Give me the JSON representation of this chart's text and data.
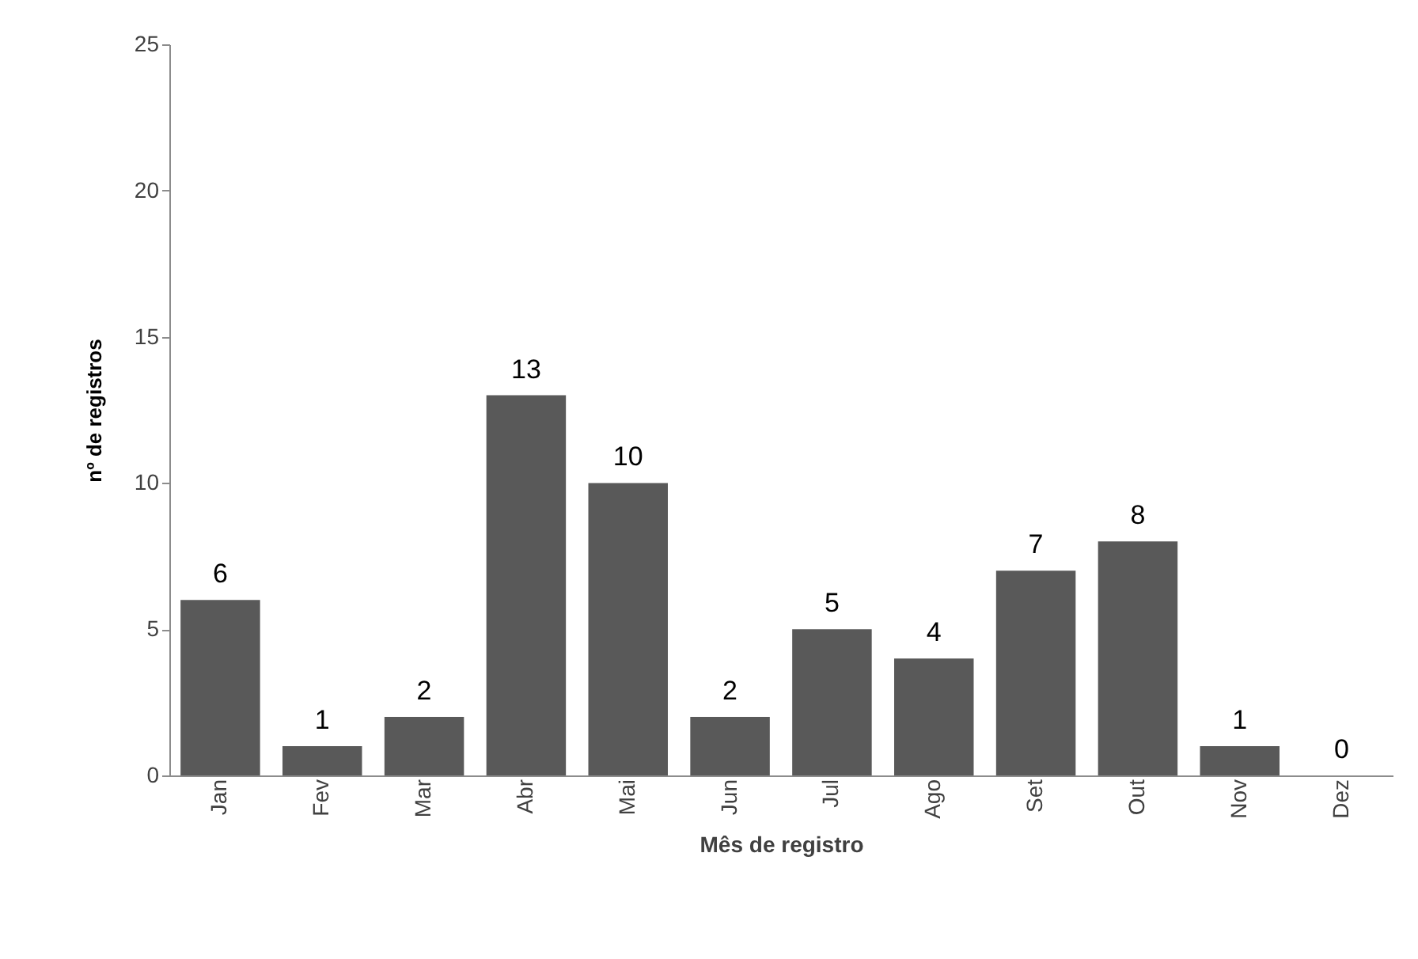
{
  "chart_data": {
    "type": "bar",
    "xlabel": "Mês de registro",
    "ylabel": "nº de registros",
    "categories": [
      "Jan",
      "Fev",
      "Mar",
      "Abr",
      "Mai",
      "Jun",
      "Jul",
      "Ago",
      "Set",
      "Out",
      "Nov",
      "Dez"
    ],
    "values": [
      6,
      1,
      2,
      13,
      10,
      2,
      5,
      4,
      7,
      8,
      1,
      0
    ],
    "color": "#595959",
    "ylim": [
      0,
      25
    ],
    "yticks": [
      0,
      5,
      10,
      15,
      20,
      25
    ],
    "grid": false,
    "data_labels": true
  }
}
